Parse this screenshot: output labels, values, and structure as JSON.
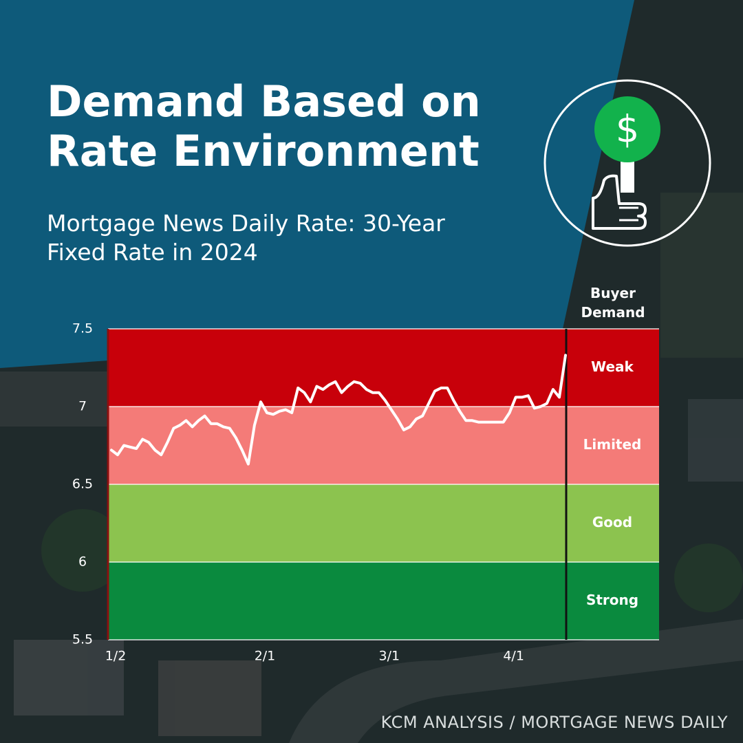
{
  "chart_data": {
    "type": "line",
    "title": "Demand Based on Rate Environment",
    "subtitle": "Mortgage News Daily Rate: 30-Year Fixed Rate in 2024",
    "legend_title": "Buyer Demand",
    "source": "KCM ANALYSIS / MORTGAGE NEWS DAILY",
    "categories": [
      "1/2",
      null,
      null,
      null,
      null,
      null,
      null,
      null,
      null,
      null,
      null,
      null,
      null,
      null,
      null,
      null,
      null,
      null,
      null,
      null,
      null,
      null,
      null,
      null,
      "2/1",
      null,
      null,
      null,
      null,
      null,
      null,
      null,
      null,
      null,
      null,
      null,
      null,
      null,
      null,
      null,
      null,
      null,
      null,
      null,
      "3/1",
      null,
      null,
      null,
      null,
      null,
      null,
      null,
      null,
      null,
      null,
      null,
      null,
      null,
      null,
      null,
      null,
      null,
      null,
      null,
      "4/1",
      null,
      null,
      null,
      null,
      null,
      null,
      null,
      null,
      null
    ],
    "values": [
      6.72,
      6.69,
      6.75,
      6.74,
      6.73,
      6.79,
      6.77,
      6.72,
      6.69,
      6.77,
      6.86,
      6.88,
      6.91,
      6.87,
      6.91,
      6.94,
      6.89,
      6.89,
      6.87,
      6.86,
      6.8,
      6.72,
      6.63,
      6.88,
      7.03,
      6.96,
      6.95,
      6.97,
      6.98,
      6.96,
      7.12,
      7.09,
      7.03,
      7.13,
      7.11,
      7.14,
      7.16,
      7.09,
      7.13,
      7.16,
      7.15,
      7.11,
      7.09,
      7.09,
      7.04,
      6.98,
      6.92,
      6.85,
      6.87,
      6.92,
      6.94,
      7.02,
      7.1,
      7.12,
      7.12,
      7.04,
      6.97,
      6.91,
      6.91,
      6.9,
      6.9,
      6.9,
      6.9,
      6.9,
      6.96,
      7.06,
      7.06,
      7.07,
      6.99,
      7.0,
      7.02,
      7.11,
      7.06,
      7.33
    ],
    "color": "#ffffff",
    "ylim": [
      5.5,
      7.5
    ],
    "yticks": [
      5.5,
      6,
      6.5,
      7,
      7.5
    ],
    "bands": [
      {
        "name": "Weak",
        "range": [
          7,
          7.5
        ],
        "color": "#c8000a"
      },
      {
        "name": "Limited",
        "range": [
          6.5,
          7
        ],
        "color": "#f47b78"
      },
      {
        "name": "Good",
        "range": [
          6,
          6.5
        ],
        "color": "#8cc34f"
      },
      {
        "name": "Strong",
        "range": [
          5.5,
          6
        ],
        "color": "#0a8a3e"
      }
    ]
  }
}
